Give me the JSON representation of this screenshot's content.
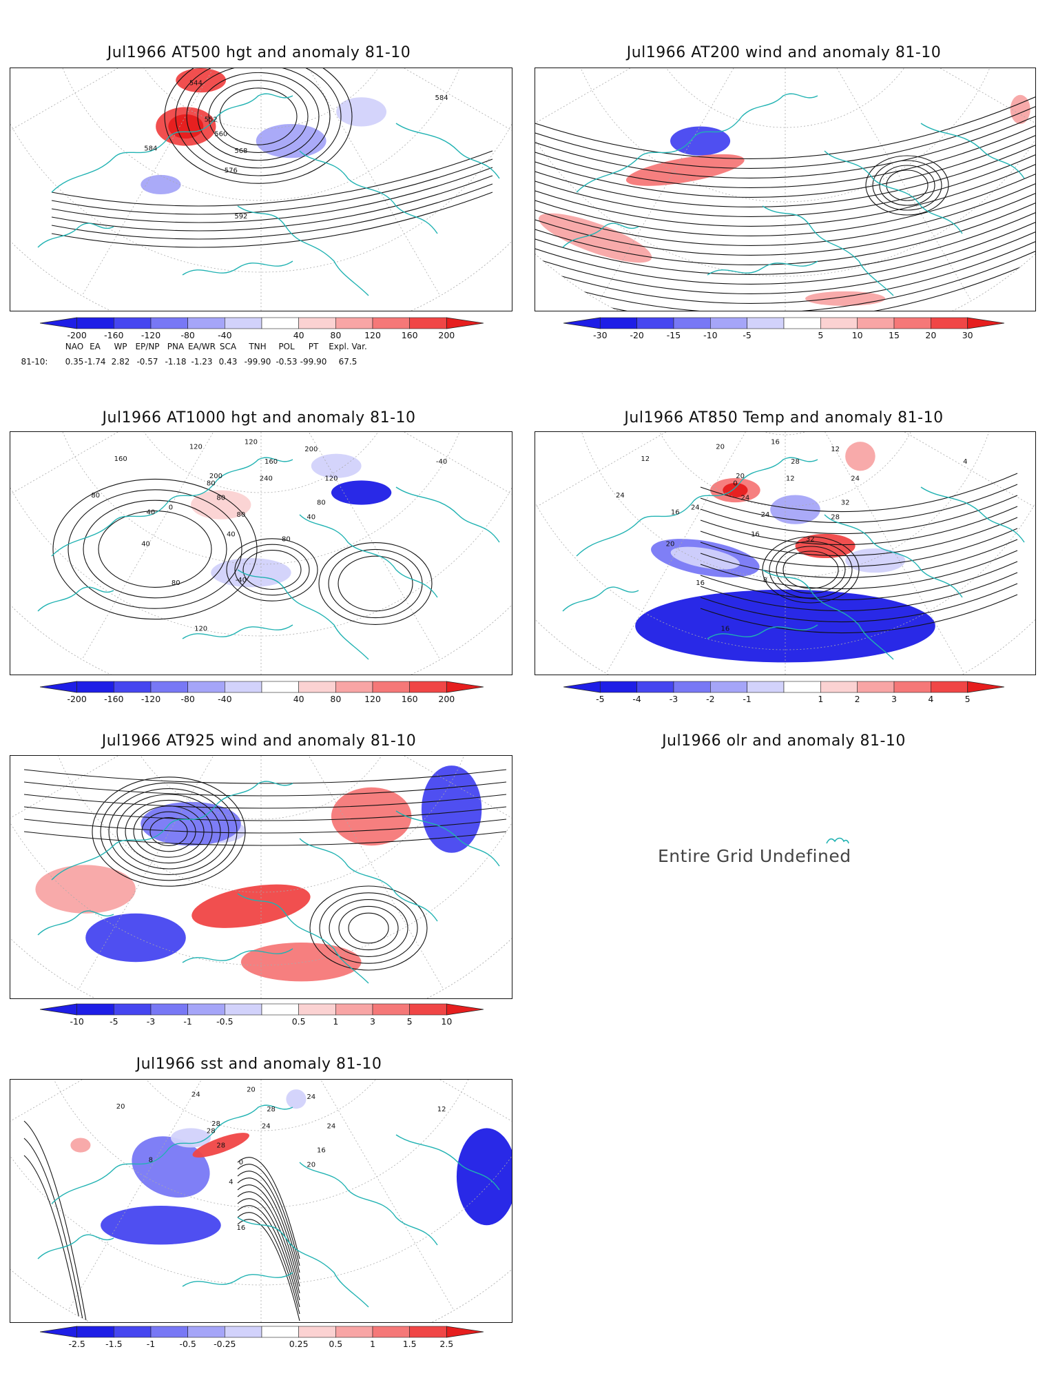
{
  "panels": [
    {
      "id": "at500",
      "title": "Jul1966 AT500 hgt and anomaly 81-10",
      "labels": [
        "544",
        "552",
        "560",
        "568",
        "576",
        "584",
        "584",
        "592"
      ],
      "legend_labels": [
        "-200",
        "-160",
        "-120",
        "-80",
        "-40",
        "40",
        "80",
        "120",
        "160",
        "200"
      ]
    },
    {
      "id": "at200",
      "title": "Jul1966 AT200 wind and anomaly 81-10",
      "labels": [],
      "legend_labels": [
        "-30",
        "-20",
        "-15",
        "-10",
        "-5",
        "5",
        "10",
        "15",
        "20",
        "30"
      ]
    },
    {
      "id": "at1000",
      "title": "Jul1966 AT1000 hgt and anomaly 81-10",
      "labels": [
        "120",
        "80",
        "80",
        "80",
        "40",
        "40",
        "-40",
        "-40",
        "160",
        "120",
        "200",
        "240",
        "200",
        "160",
        "120",
        "80",
        "40",
        "80",
        "0",
        "40",
        "80",
        "120",
        "80"
      ],
      "legend_labels": [
        "-200",
        "-160",
        "-120",
        "-80",
        "-40",
        "40",
        "80",
        "120",
        "160",
        "200"
      ]
    },
    {
      "id": "at850",
      "title": "Jul1966 AT850 Temp and anomaly 81-10",
      "labels": [
        "20",
        "0",
        "24",
        "24",
        "16",
        "16",
        "4",
        "8",
        "12",
        "16",
        "12",
        "12",
        "20",
        "28",
        "24",
        "32",
        "28",
        "24",
        "24",
        "20",
        "16",
        "16",
        "32"
      ],
      "legend_labels": [
        "-5",
        "-4",
        "-3",
        "-2",
        "-1",
        "1",
        "2",
        "3",
        "4",
        "5"
      ]
    },
    {
      "id": "at925",
      "title": "Jul1966 AT925 wind and anomaly 81-10",
      "labels": [],
      "legend_labels": [
        "-10",
        "-5",
        "-3",
        "-1",
        "-0.5",
        "0.5",
        "1",
        "3",
        "5",
        "10"
      ]
    },
    {
      "id": "olr",
      "title": "Jul1966 olr and anomaly 81-10",
      "message": "Entire Grid Undefined"
    },
    {
      "id": "sst",
      "title": "Jul1966 sst and anomaly 81-10",
      "labels": [
        "24",
        "28",
        "28",
        "0",
        "4",
        "8",
        "12",
        "16",
        "20",
        "20",
        "24",
        "24",
        "28",
        "28",
        "24",
        "16",
        "20"
      ],
      "legend_labels": [
        "-2.5",
        "-1.5",
        "-1",
        "-0.5",
        "-0.25",
        "0.25",
        "0.5",
        "1",
        "1.5",
        "2.5"
      ]
    }
  ],
  "indices": {
    "headers": [
      "NAO",
      "EA",
      "WP",
      "EP/NP",
      "PNA",
      "EA/WR",
      "SCA",
      "TNH",
      "POL",
      "PT",
      "Expl. Var."
    ],
    "row_label": "81-10:",
    "values": [
      "0.35",
      "-1.74",
      "2.82",
      "-0.57",
      "-1.18",
      "-1.23",
      "0.43",
      "-99.90",
      "-0.53",
      "-99.90",
      "67.5"
    ]
  },
  "colors": {
    "neg": [
      "#1e1ee6",
      "#4646f0",
      "#7878f5",
      "#a5a5f8",
      "#d2d2fb"
    ],
    "pos": [
      "#fbd2d2",
      "#f8a5a5",
      "#f57878",
      "#f04646",
      "#e61e1e"
    ],
    "coast": "#20b2b2",
    "grid": "#aaaaaa"
  }
}
